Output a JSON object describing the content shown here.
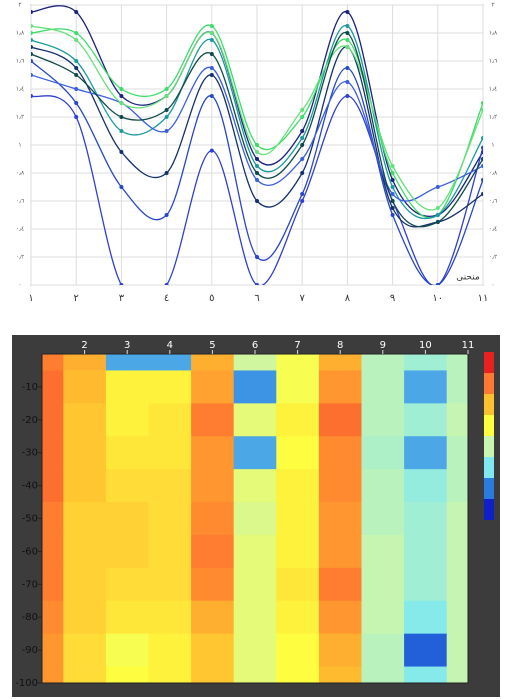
{
  "chart_data": [
    {
      "type": "line",
      "annotation": "منحنى",
      "x": [
        1,
        2,
        3,
        4,
        5,
        6,
        7,
        8,
        9,
        10,
        11
      ],
      "xlim": [
        1,
        11
      ],
      "xticks": [
        {
          "value": 1,
          "label": "١"
        },
        {
          "value": 2,
          "label": "٢"
        },
        {
          "value": 3,
          "label": "٣"
        },
        {
          "value": 4,
          "label": "٤"
        },
        {
          "value": 5,
          "label": "٥"
        },
        {
          "value": 6,
          "label": "٦"
        },
        {
          "value": 7,
          "label": "٧"
        },
        {
          "value": 8,
          "label": "٨"
        },
        {
          "value": 9,
          "label": "٩"
        },
        {
          "value": 10,
          "label": "١٠"
        },
        {
          "value": 11,
          "label": "١١"
        }
      ],
      "ylim": [
        0,
        2
      ],
      "yticks": [
        {
          "value": 0,
          "label": "٠"
        },
        {
          "value": 0.2,
          "label": "٠٫٢"
        },
        {
          "value": 0.4,
          "label": "٠٫٤"
        },
        {
          "value": 0.6,
          "label": "٠٫٦"
        },
        {
          "value": 0.8,
          "label": "٠٫٨"
        },
        {
          "value": 1,
          "label": "١"
        },
        {
          "value": 1.2,
          "label": "١٫٢"
        },
        {
          "value": 1.4,
          "label": "١٫٤"
        },
        {
          "value": 1.6,
          "label": "١٫٦"
        },
        {
          "value": 1.8,
          "label": "١٫٨"
        },
        {
          "value": 2,
          "label": "٢"
        }
      ],
      "grid": true,
      "series": [
        {
          "color": "#1a237e",
          "values": [
            1.95,
            1.95,
            1.35,
            1.35,
            1.8,
            0.9,
            1.1,
            1.95,
            0.75,
            0.5,
            0.95
          ]
        },
        {
          "color": "#3ddc6a",
          "values": [
            1.8,
            1.8,
            1.4,
            1.4,
            1.85,
            1.0,
            1.2,
            1.75,
            0.8,
            0.5,
            1.3
          ]
        },
        {
          "color": "#2f3fd0",
          "values": [
            1.35,
            1.2,
            0.0,
            0.0,
            0.96,
            0.0,
            0.6,
            1.35,
            0.6,
            0.0,
            0.98
          ]
        },
        {
          "color": "#2746c8",
          "values": [
            1.6,
            1.3,
            0.7,
            0.5,
            1.35,
            0.2,
            0.65,
            1.55,
            0.5,
            0.0,
            0.75
          ]
        },
        {
          "color": "#1a9aa0",
          "values": [
            1.75,
            1.6,
            1.1,
            1.2,
            1.75,
            0.85,
            1.05,
            1.85,
            0.7,
            0.5,
            1.05
          ]
        },
        {
          "color": "#14306e",
          "values": [
            1.7,
            1.55,
            0.95,
            0.8,
            1.5,
            0.6,
            0.8,
            1.7,
            0.55,
            0.45,
            0.65
          ]
        },
        {
          "color": "#3a5ee0",
          "values": [
            1.5,
            1.4,
            1.3,
            1.1,
            1.55,
            0.75,
            0.9,
            1.45,
            0.65,
            0.7,
            0.85
          ]
        },
        {
          "color": "#66e07a",
          "values": [
            1.85,
            1.75,
            1.3,
            1.35,
            1.8,
            0.95,
            1.25,
            1.7,
            0.85,
            0.55,
            1.25
          ]
        },
        {
          "color": "#0f4a4a",
          "values": [
            1.65,
            1.5,
            1.2,
            1.25,
            1.65,
            0.8,
            1.0,
            1.8,
            0.6,
            0.45,
            0.9
          ]
        }
      ]
    },
    {
      "type": "heatmap",
      "x": [
        1,
        2,
        3,
        4,
        5,
        6,
        7,
        8,
        9,
        10,
        11
      ],
      "y": [
        0,
        -10,
        -20,
        -30,
        -40,
        -50,
        -60,
        -70,
        -80,
        -90,
        -100
      ],
      "xlim": [
        1,
        11
      ],
      "xticks": [
        2,
        3,
        4,
        5,
        6,
        7,
        8,
        9,
        10,
        11
      ],
      "ylim": [
        -100,
        0
      ],
      "yticks": [
        -10,
        -20,
        -30,
        -40,
        -50,
        -60,
        -70,
        -80,
        -90,
        -100
      ],
      "zlim": [
        0,
        2
      ],
      "colorscale": [
        "#1020c8",
        "#2a7be0",
        "#7fe8f0",
        "#c8f5b0",
        "#ffff40",
        "#ffc030",
        "#ff7a30",
        "#e82020"
      ],
      "z": [
        [
          1.7,
          1.5,
          0.4,
          0.4,
          1.5,
          0.9,
          1.1,
          1.5,
          0.8,
          0.7,
          0.8
        ],
        [
          1.75,
          1.45,
          1.2,
          1.2,
          1.55,
          0.35,
          1.1,
          1.6,
          0.8,
          0.4,
          0.8
        ],
        [
          1.75,
          1.4,
          1.2,
          1.25,
          1.7,
          1.0,
          1.2,
          1.75,
          0.8,
          0.7,
          0.85
        ],
        [
          1.75,
          1.4,
          1.25,
          1.25,
          1.6,
          0.4,
          1.15,
          1.65,
          0.75,
          0.4,
          0.8
        ],
        [
          1.75,
          1.4,
          1.3,
          1.3,
          1.6,
          1.0,
          1.2,
          1.65,
          0.8,
          0.65,
          0.8
        ],
        [
          1.7,
          1.35,
          1.35,
          1.3,
          1.65,
          0.95,
          1.2,
          1.6,
          0.8,
          0.7,
          0.85
        ],
        [
          1.7,
          1.35,
          1.35,
          1.3,
          1.7,
          1.0,
          1.2,
          1.6,
          0.85,
          0.7,
          0.85
        ],
        [
          1.7,
          1.35,
          1.3,
          1.3,
          1.65,
          1.0,
          1.25,
          1.7,
          0.85,
          0.7,
          0.85
        ],
        [
          1.65,
          1.35,
          1.25,
          1.25,
          1.5,
          1.0,
          1.2,
          1.6,
          0.85,
          0.6,
          0.85
        ],
        [
          1.6,
          1.3,
          1.1,
          1.2,
          1.4,
          1.0,
          1.15,
          1.5,
          0.8,
          0.2,
          0.85
        ],
        [
          1.6,
          1.3,
          1.15,
          1.2,
          1.4,
          1.0,
          1.15,
          1.45,
          0.8,
          0.6,
          0.85
        ]
      ]
    }
  ]
}
